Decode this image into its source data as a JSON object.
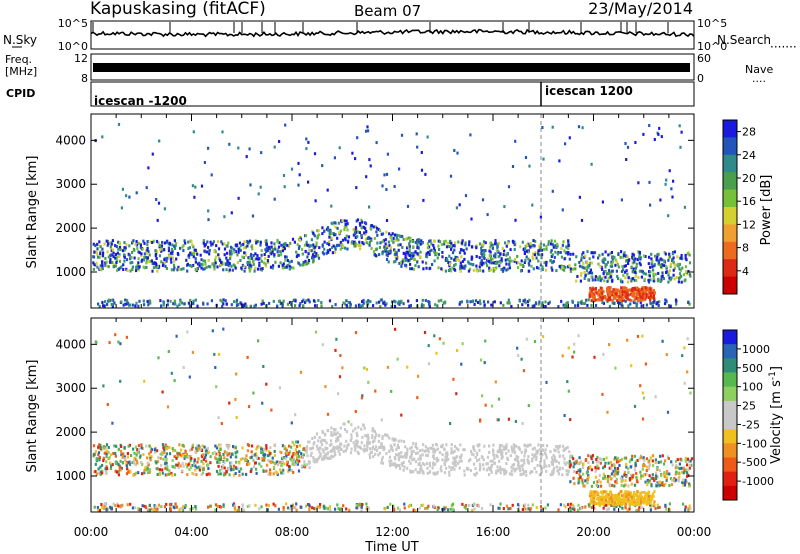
{
  "header": {
    "station": "Kapuskasing (fitACF)",
    "beam": "Beam 07",
    "date": "23/May/2014"
  },
  "noise_panel": {
    "left_label": "N.Sky",
    "right_label": "N.Search",
    "tick_top": "10^5",
    "tick_bottom": "10^0"
  },
  "freq_panel": {
    "label_line1": "Freq.",
    "label_line2": "[MHz]",
    "left_ticks": [
      "12",
      "8"
    ],
    "right_ticks": [
      "60",
      "0"
    ],
    "right_label": "Nave"
  },
  "cpid_panel": {
    "label": "CPID",
    "segments": [
      {
        "text": "icescan -1200",
        "start_hour": 0
      },
      {
        "text": "icescan 1200",
        "start_hour": 18.1
      }
    ]
  },
  "x_axis": {
    "title": "Time UT",
    "tick_labels": [
      "00:00",
      "04:00",
      "08:00",
      "12:00",
      "16:00",
      "20:00",
      "00:00"
    ],
    "range_hours": [
      0,
      24
    ]
  },
  "chart_data": [
    {
      "type": "heatmap",
      "name": "power",
      "ylabel": "Slant Range [km]",
      "yticks": [
        1000,
        2000,
        3000,
        4000
      ],
      "ylim": [
        180,
        4600
      ],
      "xlim_hours": [
        0,
        24
      ],
      "colorbar": {
        "label": "Power [dB]",
        "tick_labels": [
          "4",
          "8",
          "12",
          "16",
          "20",
          "24",
          "28"
        ],
        "range": [
          0,
          30
        ],
        "colors": [
          "#1a1adc",
          "#2255bb",
          "#2f8a8a",
          "#4aa04a",
          "#77c13a",
          "#d4d030",
          "#f0a030",
          "#ee6a1e",
          "#dd2a14",
          "#cc0000"
        ]
      }
    },
    {
      "type": "heatmap",
      "name": "velocity",
      "ylabel": "Slant Range [km]",
      "yticks": [
        1000,
        2000,
        3000,
        4000
      ],
      "ylim": [
        180,
        4600
      ],
      "xlim_hours": [
        0,
        24
      ],
      "colorbar": {
        "label": "Velocity [m s",
        "label_sup": "-1",
        "label_close": "]",
        "tick_labels": [
          "1000",
          "500",
          "100",
          "25",
          "-25",
          "-100",
          "-500",
          "-1000"
        ],
        "colors": [
          "#1a1adc",
          "#2a64b4",
          "#2e8c78",
          "#58b850",
          "#8cd060",
          "#c8c8c8",
          "#c8c8c8",
          "#f0c020",
          "#f09020",
          "#ee5a18",
          "#e02010",
          "#cc0000"
        ]
      }
    }
  ],
  "colors": {
    "axis": "#000000",
    "cpid_divider": "#555555"
  }
}
